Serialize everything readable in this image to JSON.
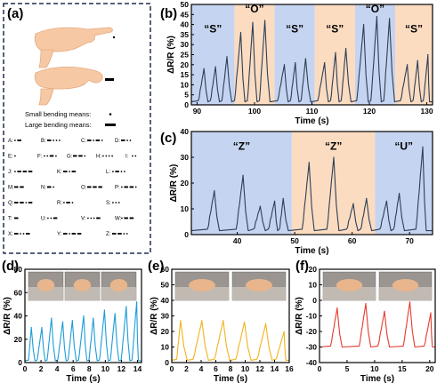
{
  "panels": {
    "a": "(a)",
    "b": "(b)",
    "c": "(c)",
    "d": "(d)",
    "e": "(e)",
    "f": "(f)"
  },
  "legend_a": {
    "small": "Small bending means:",
    "large": "Large bending means:"
  },
  "morse_code": [
    {
      "letter": "A",
      "code": ".-"
    },
    {
      "letter": "B",
      "code": "-..."
    },
    {
      "letter": "C",
      "code": "-.-."
    },
    {
      "letter": "D",
      "code": "-.."
    },
    {
      "letter": "E",
      "code": "."
    },
    {
      "letter": "F",
      "code": "..-."
    },
    {
      "letter": "G",
      "code": "--."
    },
    {
      "letter": "H",
      "code": "...."
    },
    {
      "letter": "I",
      "code": ".."
    },
    {
      "letter": "J",
      "code": ".---"
    },
    {
      "letter": "K",
      "code": "-.-"
    },
    {
      "letter": "L",
      "code": ".-.."
    },
    {
      "letter": "M",
      "code": "--"
    },
    {
      "letter": "N",
      "code": "-."
    },
    {
      "letter": "O",
      "code": "---"
    },
    {
      "letter": "P",
      "code": ".--."
    },
    {
      "letter": "Q",
      "code": "--.-"
    },
    {
      "letter": "R",
      "code": ".-."
    },
    {
      "letter": "S",
      "code": "..."
    },
    {
      "letter": "T",
      "code": "-"
    },
    {
      "letter": "U",
      "code": "..-"
    },
    {
      "letter": "V",
      "code": "...-"
    },
    {
      "letter": "W",
      "code": ".--"
    },
    {
      "letter": "X",
      "code": "-..-"
    },
    {
      "letter": "Y",
      "code": "-.--"
    },
    {
      "letter": "Z",
      "code": "--.."
    }
  ],
  "chart_data": [
    {
      "id": "b",
      "type": "line",
      "xlabel": "Time (s)",
      "ylabel": "ΔR/R (%)",
      "xlim": [
        89,
        131
      ],
      "ylim": [
        0,
        50
      ],
      "xticks": [
        90,
        100,
        110,
        120,
        130
      ],
      "yticks": [
        0,
        5,
        10,
        15,
        20,
        25,
        30,
        35,
        40,
        45,
        50
      ],
      "line_color": "#2d3f57",
      "regions": [
        {
          "x": [
            89,
            96.5
          ],
          "color": "#c5d4f0",
          "label": "“S”",
          "label_y": 36
        },
        {
          "x": [
            96.5,
            103.5
          ],
          "color": "#fbdcc1",
          "label": "“O”",
          "label_y": 46
        },
        {
          "x": [
            103.5,
            110.5
          ],
          "color": "#c5d4f0",
          "label": "“S”",
          "label_y": 36
        },
        {
          "x": [
            110.5,
            117.5
          ],
          "color": "#fbdcc1",
          "label": "“S”",
          "label_y": 36
        },
        {
          "x": [
            117.5,
            124.5
          ],
          "color": "#c5d4f0",
          "label": "“O”",
          "label_y": 46
        },
        {
          "x": [
            124.5,
            131
          ],
          "color": "#fbdcc1",
          "label": "“S”",
          "label_y": 36
        }
      ],
      "peaks": [
        [
          91.2,
          18
        ],
        [
          93.2,
          19
        ],
        [
          95.2,
          24
        ],
        [
          97.6,
          36
        ],
        [
          99.7,
          41
        ],
        [
          101.8,
          42
        ],
        [
          105.2,
          20
        ],
        [
          107.1,
          21
        ],
        [
          108.9,
          23
        ],
        [
          112.2,
          21
        ],
        [
          114.1,
          26
        ],
        [
          115.9,
          28
        ],
        [
          119,
          40
        ],
        [
          121.3,
          44
        ],
        [
          123.5,
          43
        ],
        [
          126.6,
          20
        ],
        [
          128.4,
          22
        ],
        [
          130.2,
          25
        ]
      ]
    },
    {
      "id": "c",
      "type": "line",
      "xlabel": "Time (s)",
      "ylabel": "ΔR/R (%)",
      "xlim": [
        32,
        74
      ],
      "ylim": [
        0,
        40
      ],
      "xticks": [
        40,
        50,
        60,
        70
      ],
      "yticks": [
        0,
        10,
        20,
        30,
        40
      ],
      "line_color": "#2d3f57",
      "regions": [
        {
          "x": [
            32,
            49.5
          ],
          "color": "#c5d4f0",
          "label": "“Z”",
          "label_y": 33
        },
        {
          "x": [
            49.5,
            64
          ],
          "color": "#fbdcc1",
          "label": "“Z”",
          "label_y": 33
        },
        {
          "x": [
            64,
            74
          ],
          "color": "#c5d4f0",
          "label": "“U”",
          "label_y": 33
        }
      ],
      "peaks": [
        [
          36,
          17
        ],
        [
          41,
          23
        ],
        [
          44,
          11
        ],
        [
          46.5,
          13
        ],
        [
          48,
          14
        ],
        [
          52.5,
          28
        ],
        [
          56.8,
          30
        ],
        [
          60.2,
          12
        ],
        [
          62.5,
          14
        ],
        [
          66,
          13
        ],
        [
          68.2,
          16
        ],
        [
          72.3,
          34
        ]
      ]
    },
    {
      "id": "d",
      "type": "line",
      "xlabel": "Time (s)",
      "ylabel": "ΔR/R (%)",
      "xlim": [
        0,
        14.5
      ],
      "ylim": [
        0,
        80
      ],
      "xticks": [
        0,
        2,
        4,
        6,
        8,
        10,
        12,
        14
      ],
      "yticks": [
        0,
        20,
        40,
        60,
        80
      ],
      "line_color": "#1c9cd8",
      "peaks": [
        [
          0.8,
          30
        ],
        [
          2.1,
          30
        ],
        [
          3.3,
          38
        ],
        [
          4.7,
          35
        ],
        [
          5.9,
          36
        ],
        [
          7.3,
          40
        ],
        [
          8.5,
          38
        ],
        [
          9.9,
          45
        ],
        [
          11.2,
          42
        ],
        [
          12.6,
          48
        ],
        [
          13.9,
          52
        ]
      ]
    },
    {
      "id": "e",
      "type": "line",
      "xlabel": "Time (s)",
      "ylabel": "ΔR/R (%)",
      "xlim": [
        0,
        16
      ],
      "ylim": [
        0,
        60
      ],
      "xticks": [
        0,
        2,
        4,
        6,
        8,
        10,
        12,
        14,
        16
      ],
      "yticks": [
        0,
        10,
        20,
        30,
        40,
        50,
        60
      ],
      "line_color": "#f2b21d",
      "peaks": [
        [
          1.2,
          27
        ],
        [
          4.1,
          27
        ],
        [
          7.0,
          27
        ],
        [
          9.9,
          26
        ],
        [
          12.8,
          25
        ],
        [
          15.3,
          20
        ]
      ]
    },
    {
      "id": "f",
      "type": "line",
      "xlabel": "Time (s)",
      "ylabel": "ΔR/R (%)",
      "xlim": [
        0,
        21
      ],
      "ylim": [
        -40,
        20
      ],
      "xticks": [
        0,
        5,
        10,
        15,
        20
      ],
      "yticks": [
        -40,
        -30,
        -20,
        -10,
        0,
        10,
        20
      ],
      "line_color": "#e63a2c",
      "peaks": [
        [
          3.2,
          -5
        ],
        [
          8.4,
          -2
        ],
        [
          11.8,
          -7
        ],
        [
          16.4,
          -1
        ],
        [
          20.2,
          -8
        ]
      ]
    }
  ]
}
